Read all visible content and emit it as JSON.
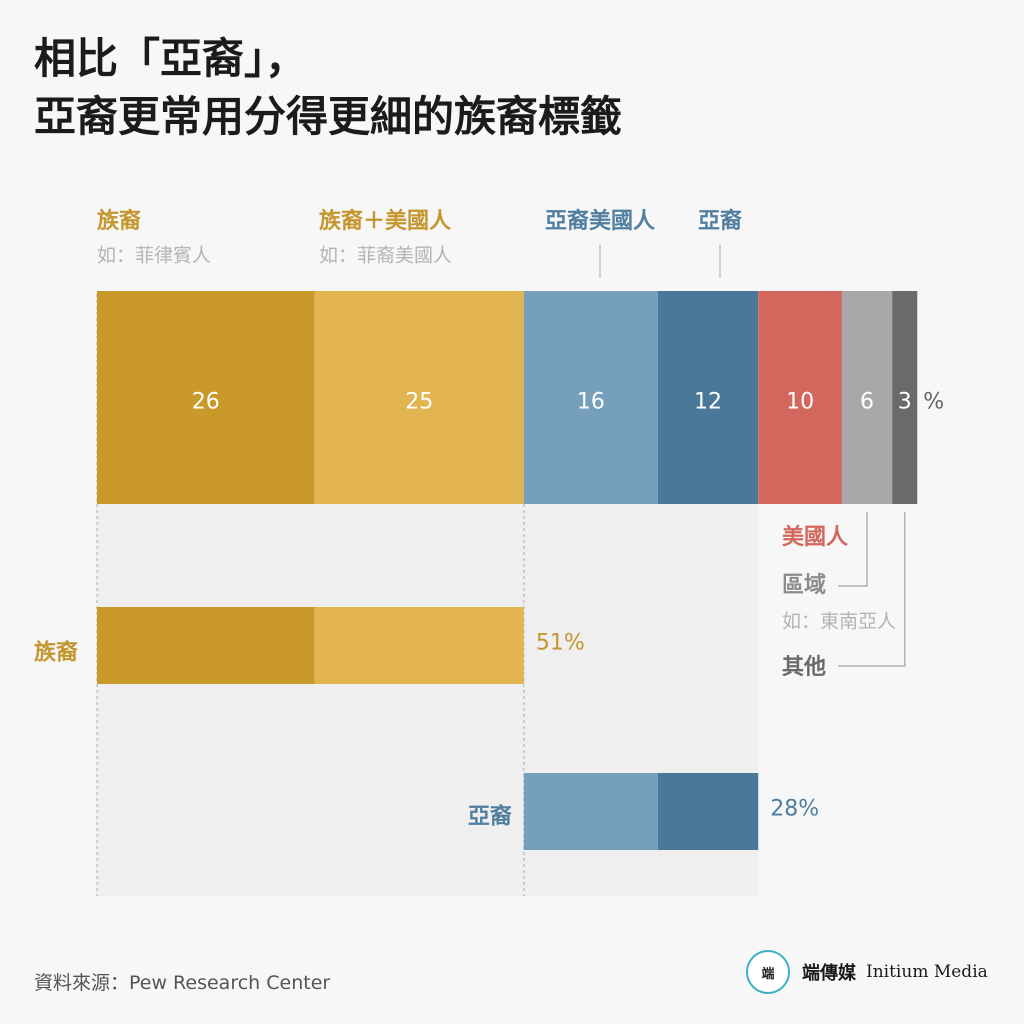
{
  "title": {
    "line1": "相比「亞裔」，",
    "line2": "亞裔更常用分得更細的族裔標籤"
  },
  "chart_data": {
    "type": "bar",
    "unit": "%",
    "stacked_bar": {
      "segments": [
        {
          "key": "ethnic",
          "value": 26,
          "label": "26",
          "color": "#c99a2a"
        },
        {
          "key": "ethnic_american",
          "value": 25,
          "label": "25",
          "color": "#e3b550"
        },
        {
          "key": "asian_american",
          "value": 16,
          "label": "16",
          "color": "#769fbc"
        },
        {
          "key": "asian",
          "value": 12,
          "label": "12",
          "color": "#4a7899"
        },
        {
          "key": "american",
          "value": 10,
          "label": "10",
          "color": "#d3675e"
        },
        {
          "key": "regional",
          "value": 6,
          "label": "6",
          "color": "#a8a8a8"
        },
        {
          "key": "other",
          "value": 3,
          "label": "3",
          "color": "#6a6a6a"
        }
      ]
    },
    "top_labels": [
      {
        "key": "ethnic",
        "name": "族裔",
        "example": "如：菲律賓人",
        "color": "#c4962d"
      },
      {
        "key": "ethnic_american",
        "name": "族裔＋美國人",
        "example": "如：菲裔美國人",
        "color": "#c4962d"
      },
      {
        "key": "asian_american",
        "name": "亞裔美國人",
        "color": "#4f7ea0"
      },
      {
        "key": "asian",
        "name": "亞裔",
        "color": "#4f7ea0"
      }
    ],
    "side_labels": [
      {
        "key": "american",
        "name": "美國人",
        "color": "#d3675e"
      },
      {
        "key": "regional",
        "name": "區域",
        "example": "如：東南亞人",
        "color": "#8c8c8c"
      },
      {
        "key": "other",
        "name": "其他",
        "color": "#6a6a6a"
      }
    ],
    "summary": [
      {
        "name": "族裔",
        "label": "51%",
        "value": 51,
        "parts": [
          "ethnic",
          "ethnic_american"
        ],
        "color": "#c4962d"
      },
      {
        "name": "亞裔",
        "label": "28%",
        "value": 28,
        "parts": [
          "asian_american",
          "asian"
        ],
        "color": "#4f7ea0"
      }
    ],
    "xlim": [
      0,
      100
    ]
  },
  "source": "資料來源：Pew Research Center",
  "brand": {
    "logo": "端",
    "name": "端傳媒",
    "english": "Initium Media"
  }
}
